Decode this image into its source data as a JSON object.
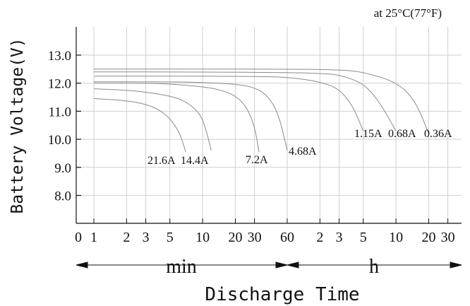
{
  "chart_data": {
    "type": "line",
    "title": "",
    "condition_note": "at 25°C(77°F)",
    "ylabel": "Battery Voltage(V)",
    "xlabel": "Discharge Time",
    "ylim": [
      7.0,
      13.0
    ],
    "y_ticks": [
      "13.0",
      "12.0",
      "11.0",
      "10.0",
      "9.0",
      "8.0"
    ],
    "y_tick_values": [
      13.0,
      12.0,
      11.0,
      10.0,
      9.0,
      8.0
    ],
    "x_scale": "log",
    "x_tick_labels": [
      "0",
      "1",
      "2",
      "3",
      "5",
      "10",
      "20",
      "30",
      "60",
      "2",
      "3",
      "5",
      "10",
      "20",
      "30"
    ],
    "x_tick_minutes": [
      0,
      1,
      2,
      3,
      5,
      10,
      20,
      30,
      60,
      120,
      180,
      300,
      600,
      1200,
      1800
    ],
    "x_units": {
      "min": "min",
      "h": "h"
    },
    "grid": true,
    "series": [
      {
        "name": "21.6A",
        "x": [
          1,
          2,
          3,
          4,
          5,
          6,
          6.5,
          7
        ],
        "y": [
          11.45,
          11.38,
          11.25,
          11.05,
          10.75,
          10.3,
          9.95,
          9.55
        ]
      },
      {
        "name": "14.4A",
        "x": [
          1,
          2,
          3,
          5,
          7,
          9,
          10,
          11,
          12
        ],
        "y": [
          11.8,
          11.75,
          11.68,
          11.55,
          11.35,
          11.0,
          10.7,
          10.2,
          9.6
        ]
      },
      {
        "name": "7.2A",
        "x": [
          1,
          2,
          3,
          5,
          10,
          15,
          20,
          25,
          30,
          33
        ],
        "y": [
          12.0,
          12.0,
          12.0,
          11.97,
          11.88,
          11.75,
          11.55,
          11.2,
          10.5,
          9.55
        ]
      },
      {
        "name": "4.68A",
        "x": [
          1,
          5,
          10,
          20,
          30,
          40,
          50,
          60
        ],
        "y": [
          12.05,
          12.05,
          12.03,
          11.97,
          11.85,
          11.55,
          10.9,
          9.6
        ]
      },
      {
        "name": "1.15A",
        "x": [
          1,
          5,
          10,
          30,
          60,
          120,
          180,
          240,
          300
        ],
        "y": [
          12.25,
          12.25,
          12.25,
          12.24,
          12.22,
          12.05,
          11.8,
          11.2,
          10.3
        ]
      },
      {
        "name": "0.68A",
        "x": [
          1,
          10,
          60,
          120,
          180,
          300,
          420,
          600
        ],
        "y": [
          12.4,
          12.4,
          12.38,
          12.35,
          12.3,
          12.0,
          11.35,
          10.3
        ]
      },
      {
        "name": "0.36A",
        "x": [
          1,
          10,
          60,
          180,
          300,
          600,
          900,
          1200
        ],
        "y": [
          12.5,
          12.5,
          12.5,
          12.48,
          12.4,
          12.05,
          11.4,
          10.2
        ]
      }
    ]
  }
}
